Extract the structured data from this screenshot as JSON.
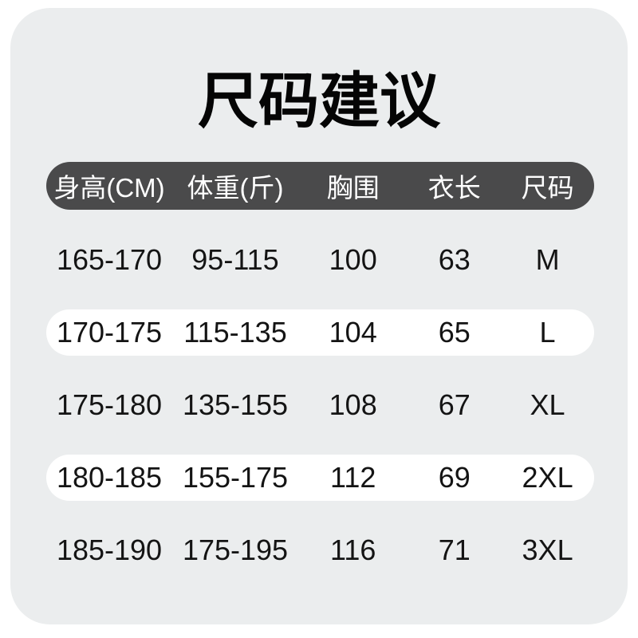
{
  "title": {
    "text": "尺码建议"
  },
  "table": {
    "headers": [
      "身高(CM)",
      "体重(斤)",
      "胸围",
      "衣长",
      "尺码"
    ],
    "rows": [
      {
        "highlight": false,
        "cells": [
          "165-170",
          "95-115",
          "100",
          "63",
          "M"
        ]
      },
      {
        "highlight": true,
        "cells": [
          "170-175",
          "115-135",
          "104",
          "65",
          "L"
        ]
      },
      {
        "highlight": false,
        "cells": [
          "175-180",
          "135-155",
          "108",
          "67",
          "XL"
        ]
      },
      {
        "highlight": true,
        "cells": [
          "180-185",
          "155-175",
          "112",
          "69",
          "2XL"
        ]
      },
      {
        "highlight": false,
        "cells": [
          "185-190",
          "175-195",
          "116",
          "71",
          "3XL"
        ]
      }
    ]
  },
  "colors": {
    "page_bg": "#ffffff",
    "card_bg": "#ebedee",
    "header_bar_bg": "#4a4a4b",
    "header_text": "#ffffff",
    "highlight_row_bg": "#ffffff",
    "body_text": "#141414",
    "title_text": "#050505"
  }
}
